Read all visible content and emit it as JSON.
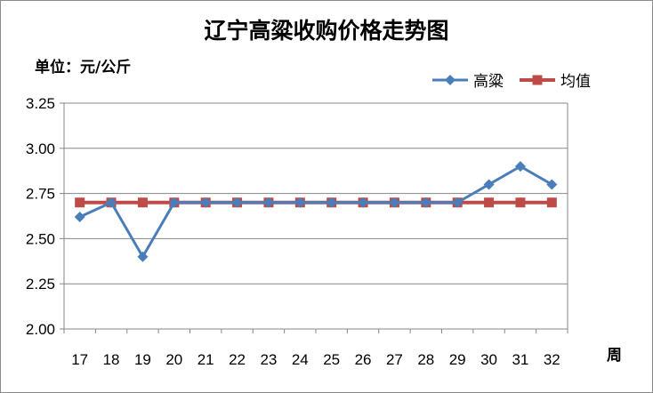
{
  "chart_data": {
    "type": "line",
    "title": "辽宁高粱收购价格走势图",
    "ylabel": "单位：元/公斤",
    "xlabel": "周",
    "categories": [
      "17",
      "18",
      "19",
      "20",
      "21",
      "22",
      "23",
      "24",
      "25",
      "26",
      "27",
      "28",
      "29",
      "30",
      "31",
      "32"
    ],
    "ylim": [
      2.0,
      3.25
    ],
    "yticks": [
      "2.00",
      "2.25",
      "2.50",
      "2.75",
      "3.00",
      "3.25"
    ],
    "grid": true,
    "legend_position": "top-right",
    "series": [
      {
        "name": "高粱",
        "color": "#4a7ebb",
        "marker": "diamond",
        "values": [
          2.62,
          2.7,
          2.4,
          2.7,
          2.7,
          2.7,
          2.7,
          2.7,
          2.7,
          2.7,
          2.7,
          2.7,
          2.7,
          2.8,
          2.9,
          2.8
        ]
      },
      {
        "name": "均值",
        "color": "#be4b48",
        "marker": "square",
        "values": [
          2.7,
          2.7,
          2.7,
          2.7,
          2.7,
          2.7,
          2.7,
          2.7,
          2.7,
          2.7,
          2.7,
          2.7,
          2.7,
          2.7,
          2.7,
          2.7
        ]
      }
    ]
  }
}
